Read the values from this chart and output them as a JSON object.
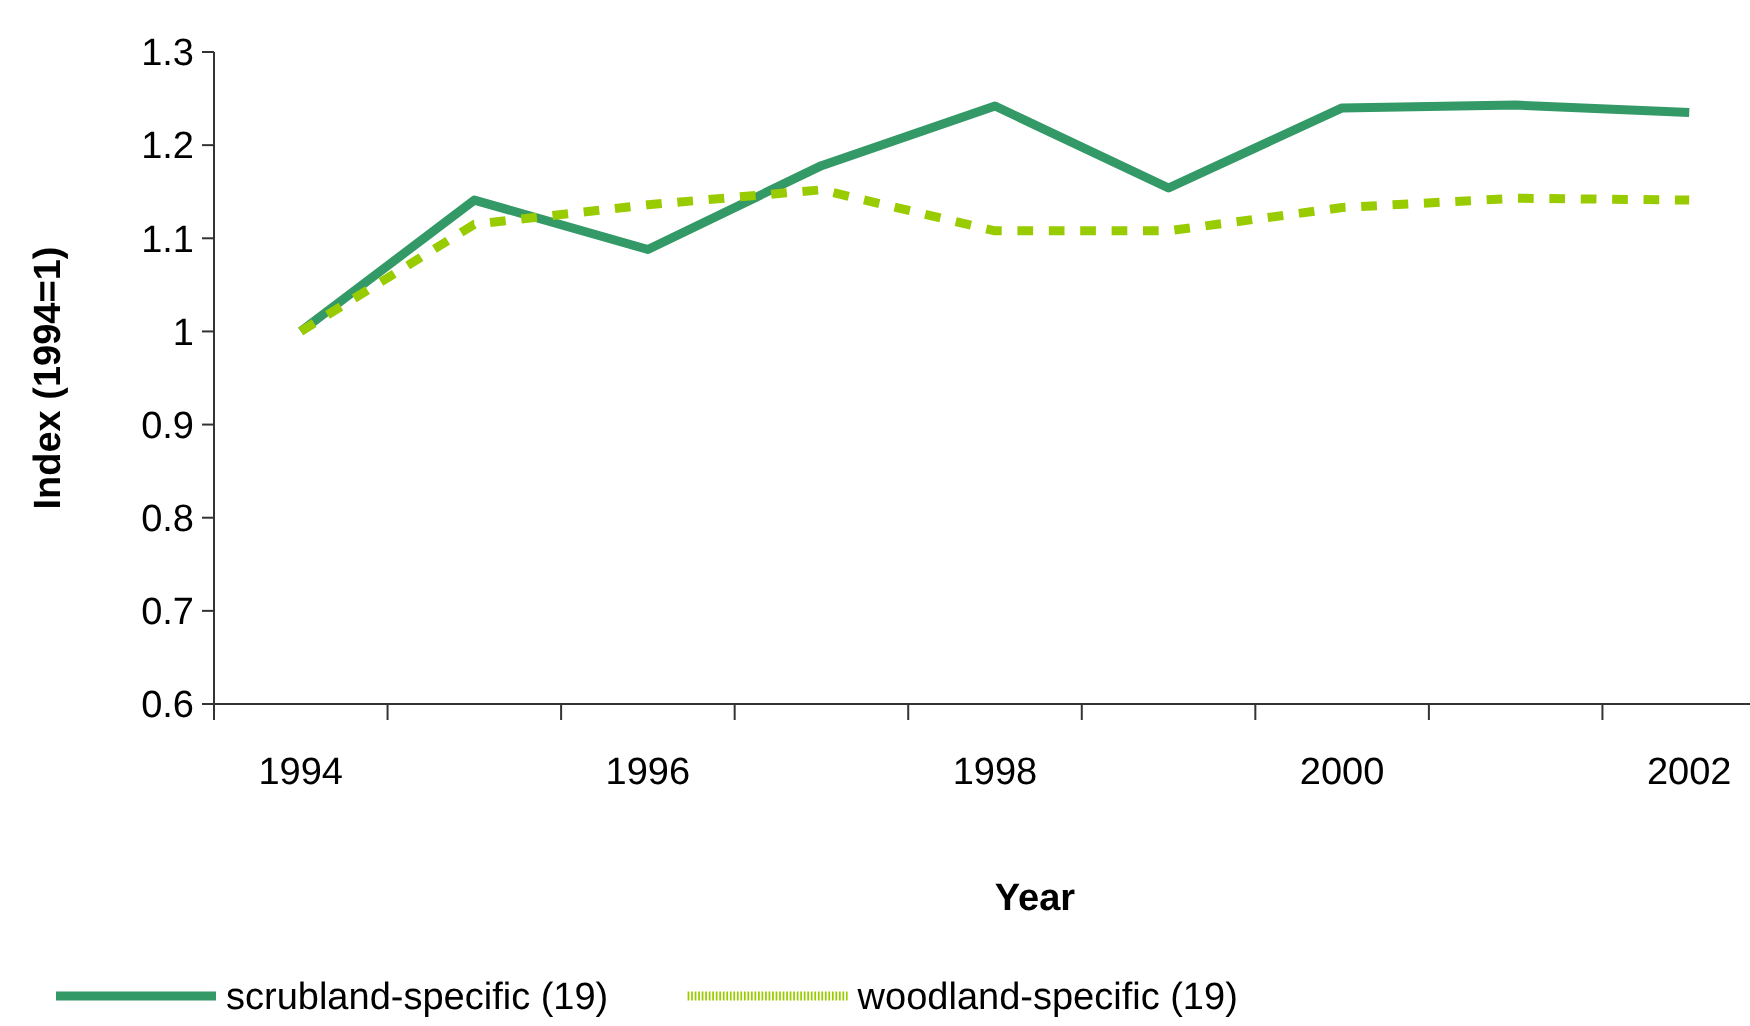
{
  "chart_data": {
    "type": "line",
    "xlabel": "Year",
    "ylabel": "Index (1994=1)",
    "categories": [
      "1994",
      null,
      "1996",
      null,
      "1998",
      null,
      "2000",
      null,
      "2002"
    ],
    "series": [
      {
        "name": "scrubland-specific (19)",
        "color": "#339966",
        "line_style": "solid",
        "values": [
          1.0,
          1.141,
          1.088,
          1.178,
          1.242,
          1.154,
          1.24,
          1.243,
          1.235
        ]
      },
      {
        "name": "woodland-specific (19)",
        "color": "#99cc00",
        "line_style": "dashed",
        "values": [
          1.0,
          1.115,
          1.136,
          1.152,
          1.108,
          1.108,
          1.133,
          1.143,
          1.141
        ]
      }
    ],
    "ylim": [
      0.6,
      1.3
    ],
    "yticks": [
      0.6,
      0.7,
      0.8,
      0.9,
      1,
      1.1,
      1.2,
      1.3
    ],
    "grid": false,
    "legend": "bottom"
  }
}
